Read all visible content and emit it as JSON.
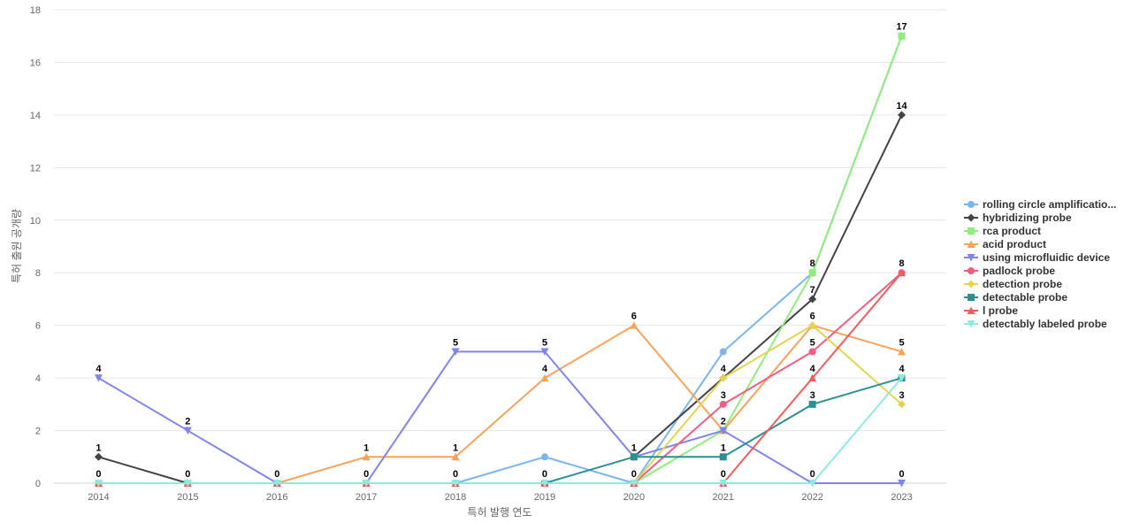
{
  "chart_data": {
    "type": "line",
    "title": "",
    "xlabel": "특허 발행 연도",
    "ylabel": "특허 출원 공개량",
    "ylim": [
      0,
      18
    ],
    "yticks": [
      0,
      2,
      4,
      6,
      8,
      10,
      12,
      14,
      16,
      18
    ],
    "grid": true,
    "legend_position": "right",
    "categories": [
      "2014",
      "2015",
      "2016",
      "2017",
      "2018",
      "2019",
      "2020",
      "2021",
      "2022",
      "2023"
    ],
    "series": [
      {
        "name": "rolling circle amplificatio...",
        "color": "#7cb5ec",
        "marker": "circle",
        "values": [
          0,
          0,
          0,
          0,
          0,
          1,
          0,
          5,
          8,
          17
        ],
        "labels": [
          null,
          null,
          null,
          null,
          null,
          null,
          null,
          null,
          null,
          null
        ]
      },
      {
        "name": "hybridizing probe",
        "color": "#434348",
        "marker": "diamond",
        "values": [
          1,
          0,
          null,
          null,
          null,
          null,
          1,
          4,
          7,
          14
        ],
        "labels": [
          1,
          0,
          null,
          null,
          null,
          null,
          null,
          null,
          7,
          14
        ]
      },
      {
        "name": "rca product",
        "color": "#90ed7d",
        "marker": "square",
        "values": [
          0,
          0,
          0,
          0,
          0,
          0,
          0,
          2,
          8,
          17
        ],
        "labels": [
          null,
          null,
          null,
          null,
          null,
          null,
          null,
          null,
          8,
          17
        ]
      },
      {
        "name": "acid product",
        "color": "#f7a35c",
        "marker": "triangle",
        "values": [
          null,
          null,
          0,
          1,
          1,
          4,
          6,
          2,
          6,
          5
        ],
        "labels": [
          null,
          null,
          0,
          1,
          1,
          4,
          6,
          null,
          6,
          5
        ]
      },
      {
        "name": "using microfluidic device",
        "color": "#8085e9",
        "marker": "triangle-down",
        "values": [
          4,
          2,
          0,
          0,
          5,
          5,
          1,
          2,
          0,
          0
        ],
        "labels": [
          4,
          2,
          null,
          null,
          5,
          5,
          1,
          2,
          null,
          0
        ]
      },
      {
        "name": "padlock probe",
        "color": "#f15c80",
        "marker": "circle",
        "values": [
          null,
          null,
          null,
          null,
          null,
          null,
          0,
          3,
          5,
          8
        ],
        "labels": [
          null,
          null,
          null,
          null,
          null,
          null,
          null,
          3,
          5,
          8
        ]
      },
      {
        "name": "detection probe",
        "color": "#e4d354",
        "marker": "diamond",
        "values": [
          null,
          null,
          null,
          null,
          null,
          null,
          0,
          4,
          6,
          3
        ],
        "labels": [
          null,
          null,
          null,
          null,
          null,
          null,
          0,
          4,
          null,
          3
        ]
      },
      {
        "name": "detectable probe",
        "color": "#2b908f",
        "marker": "square",
        "values": [
          null,
          null,
          null,
          null,
          null,
          0,
          1,
          1,
          3,
          4
        ],
        "labels": [
          null,
          null,
          null,
          null,
          null,
          0,
          null,
          1,
          3,
          null
        ]
      },
      {
        "name": "l probe",
        "color": "#f45b5b",
        "marker": "triangle",
        "values": [
          0,
          0,
          0,
          0,
          0,
          0,
          0,
          0,
          4,
          8
        ],
        "labels": [
          null,
          null,
          null,
          null,
          null,
          null,
          null,
          0,
          4,
          null
        ]
      },
      {
        "name": "detectably labeled probe",
        "color": "#91e8e1",
        "marker": "triangle-down",
        "values": [
          0,
          0,
          0,
          0,
          0,
          0,
          0,
          0,
          0,
          4
        ],
        "labels": [
          0,
          null,
          null,
          0,
          0,
          null,
          null,
          null,
          0,
          4
        ]
      }
    ]
  }
}
